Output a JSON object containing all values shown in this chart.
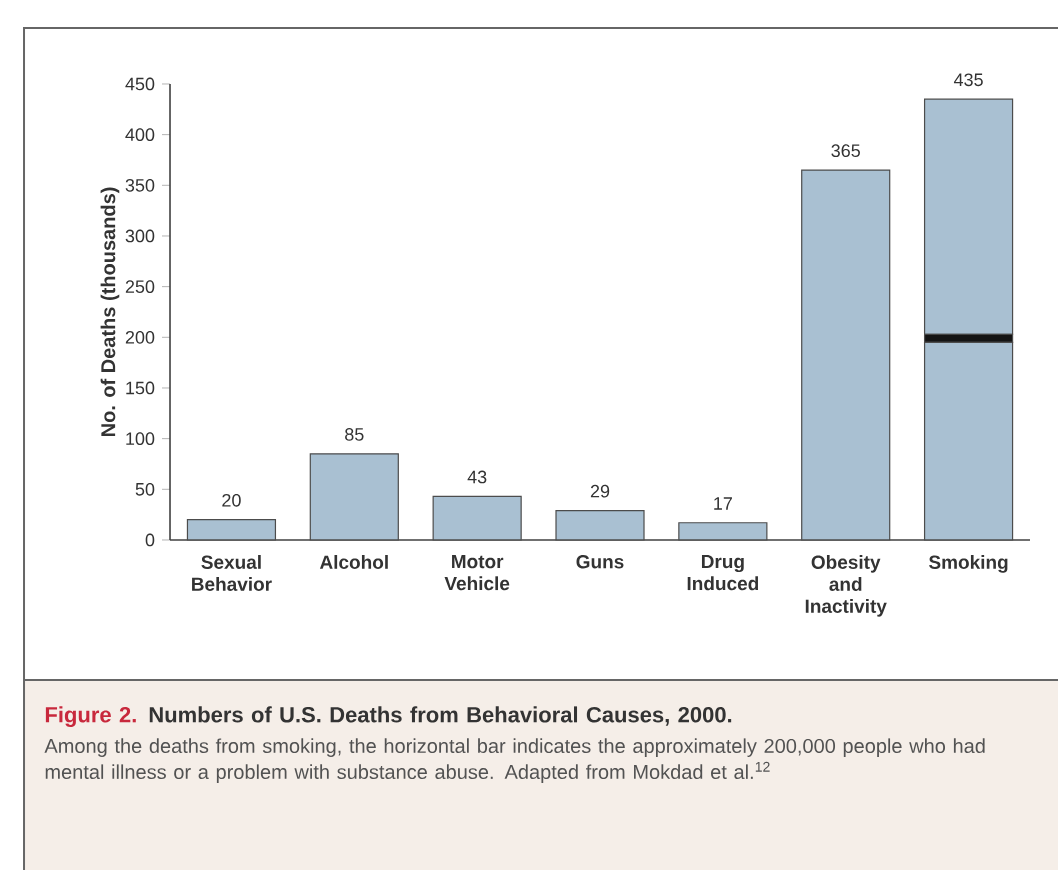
{
  "chart_data": {
    "type": "bar",
    "title": "Figure 2.",
    "subtitle": "Numbers of U.S. Deaths from Behavioral Causes, 2000.",
    "ylabel": "No. of Deaths (thousands)",
    "annotations": [
      "Among the deaths from smoking, the horizontal bar indicates the approximately 200,000 people who had mental illness or a problem with substance abuse. Adapted from Mokdad et al.$^{12}$"
    ],
    "categories": [
      "Sexual Behavior",
      "Alcohol",
      "Motor Vehicle",
      "Guns",
      "Drug Induced",
      "Obesity and Inactivity",
      "Smoking"
    ],
    "stacked": true,
    "series": [
      {
        "color": "#a9c0d2",
        "values": [
          20,
          85,
          43,
          29,
          17,
          365,
          195
        ]
      },
      {
        "color": "#141414",
        "values": [
          null,
          null,
          null,
          null,
          null,
          null,
          8
        ]
      },
      {
        "color": "#a9c0d2",
        "values": [
          null,
          null,
          null,
          null,
          null,
          null,
          232
        ]
      }
    ],
    "totals": [
      "20",
      "85",
      "43",
      "29",
      "17",
      "365",
      "435"
    ],
    "ylim": [
      0,
      450
    ],
    "yticks": [
      0,
      50,
      100,
      150,
      200,
      250,
      300,
      350,
      400,
      450
    ],
    "grid": false,
    "legend": false
  }
}
